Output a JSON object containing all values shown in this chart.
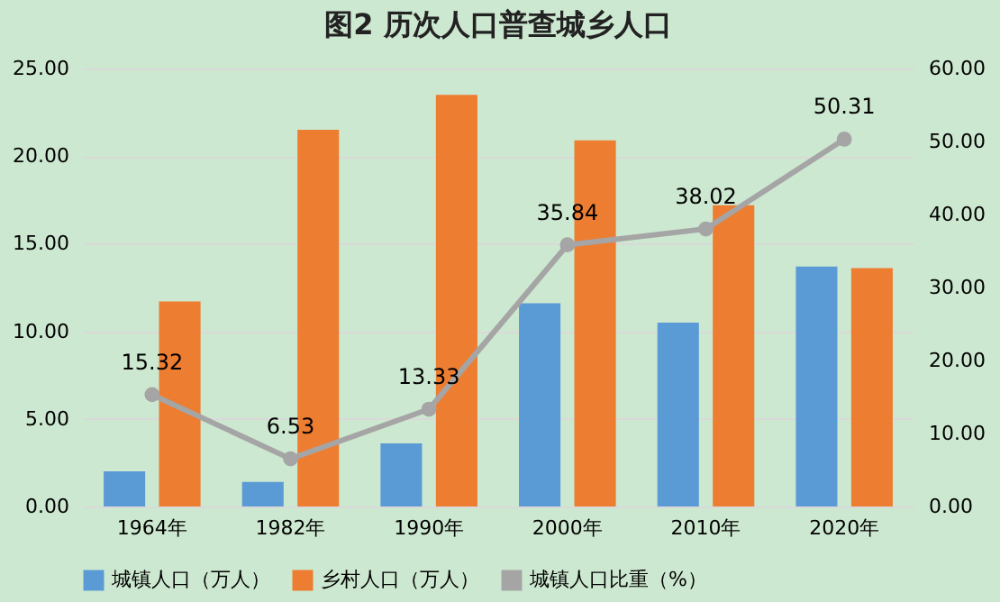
{
  "chart_data": {
    "type": "bar",
    "title": "图2  历次人口普查城乡人口",
    "categories": [
      "1964年",
      "1982年",
      "1990年",
      "2000年",
      "2010年",
      "2020年"
    ],
    "series": [
      {
        "name": "城镇人口（万人）",
        "color": "#5b9bd5",
        "values": [
          2.0,
          1.4,
          3.6,
          11.6,
          10.5,
          13.7
        ]
      },
      {
        "name": "乡村人口（万人）",
        "color": "#ed7d31",
        "values": [
          11.7,
          21.5,
          23.5,
          20.9,
          17.2,
          13.6
        ]
      },
      {
        "name": "城镇人口比重（%）",
        "type": "line",
        "axis": "y2",
        "color": "#a5a5a5",
        "marker": "circle",
        "values": [
          15.32,
          6.53,
          13.33,
          35.84,
          38.02,
          50.31
        ],
        "value_labels": [
          "15.32",
          "6.53",
          "13.33",
          "35.84",
          "38.02",
          "50.31"
        ]
      }
    ],
    "ylim": [
      0,
      25
    ],
    "yticks": [
      {
        "value": 0,
        "label": "0.00"
      },
      {
        "value": 5,
        "label": "5.00"
      },
      {
        "value": 10,
        "label": "10.00"
      },
      {
        "value": 15,
        "label": "15.00"
      },
      {
        "value": 20,
        "label": "20.00"
      },
      {
        "value": 25,
        "label": "25.00"
      }
    ],
    "y2lim": [
      0,
      60
    ],
    "y2ticks": [
      {
        "value": 0,
        "label": "0.00"
      },
      {
        "value": 10,
        "label": "10.00"
      },
      {
        "value": 20,
        "label": "20.00"
      },
      {
        "value": 30,
        "label": "30.00"
      },
      {
        "value": 40,
        "label": "40.00"
      },
      {
        "value": 50,
        "label": "50.00"
      },
      {
        "value": 60,
        "label": "60.00"
      }
    ],
    "grid": "y",
    "legend": "bottom"
  }
}
